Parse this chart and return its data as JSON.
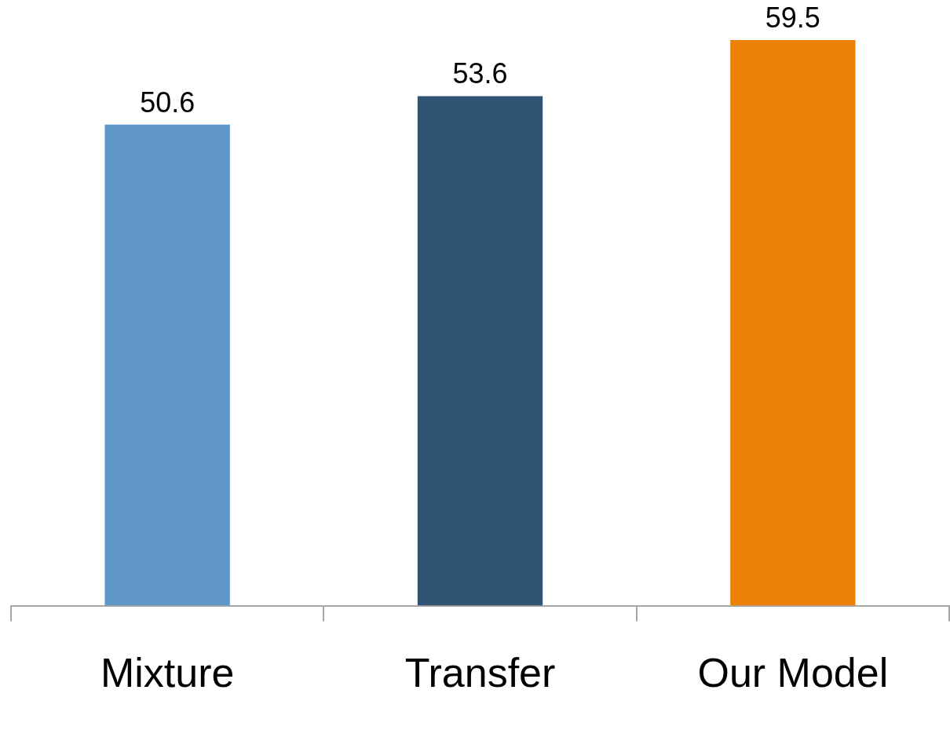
{
  "chart_data": {
    "type": "bar",
    "categories": [
      "Mixture",
      "Transfer",
      "Our Model"
    ],
    "values": [
      50.6,
      53.6,
      59.5
    ],
    "colors": [
      "#6097c9",
      "#305373",
      "#ec8105"
    ],
    "tick_labels": "x",
    "data_labels": true,
    "grid": false,
    "legend": false
  }
}
